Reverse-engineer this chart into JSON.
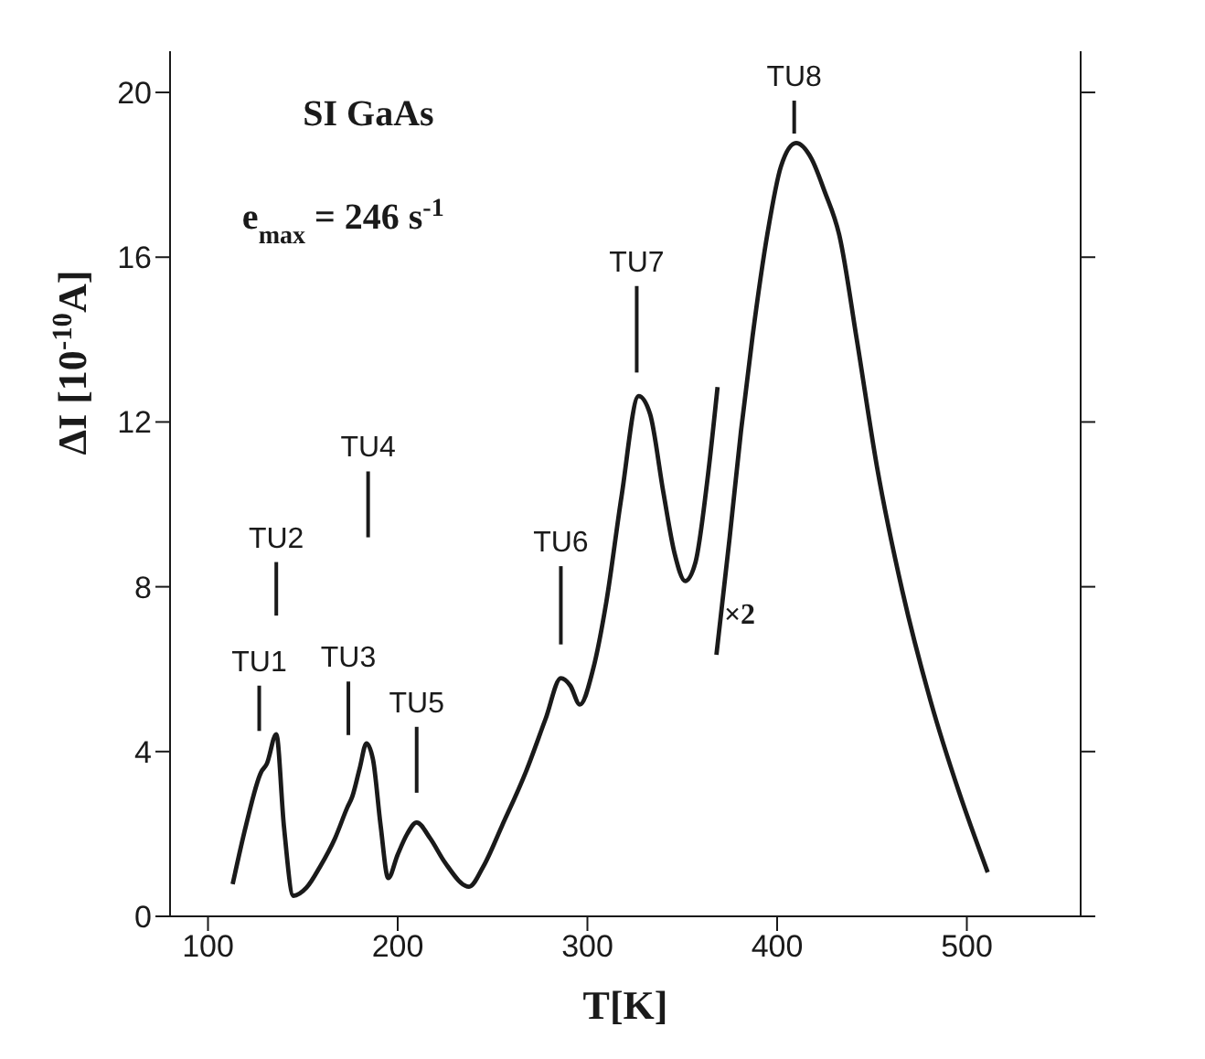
{
  "chart_data": {
    "type": "line",
    "xlabel": "T[K]",
    "ylabel": "ΔI  [10$^{-10}$A]",
    "xlim": [
      80,
      560
    ],
    "xticks": [
      100,
      200,
      300,
      400,
      500
    ],
    "ylim": [
      0,
      21
    ],
    "yticks": [
      0,
      4,
      8,
      12,
      16,
      20
    ],
    "grid": false,
    "marker": "none",
    "line_style": "solid",
    "series": [
      {
        "color": "#1a1a1a",
        "x": [
          113,
          120,
          128,
          131,
          136,
          140,
          145,
          152,
          159,
          167,
          173.5,
          176,
          180,
          183.5,
          187,
          191,
          195,
          200,
          205,
          210,
          217,
          225,
          237.6,
          245,
          255,
          267.5,
          278,
          286,
          291,
          296,
          303,
          310,
          318,
          327,
          333,
          340,
          346,
          351.5,
          357,
          363,
          368.6
        ],
        "values": [
          0.78,
          2.2,
          3.5,
          3.7,
          4.42,
          2.2,
          0.5,
          0.7,
          1.2,
          1.9,
          2.65,
          2.9,
          3.6,
          4.2,
          3.8,
          2.2,
          0.93,
          1.5,
          2.0,
          2.28,
          1.9,
          1.3,
          0.72,
          1.2,
          2.2,
          3.5,
          4.8,
          5.78,
          5.6,
          5.14,
          6.0,
          7.64,
          10.2,
          12.63,
          12.2,
          10.3,
          8.8,
          8.14,
          8.6,
          10.5,
          12.85
        ]
      },
      {
        "color": "#1a1a1a",
        "x": [
          368,
          375,
          381,
          387,
          395,
          402,
          410,
          418,
          425,
          433,
          442,
          452.6,
          466,
          481,
          496,
          511
        ],
        "values": [
          6.35,
          9.2,
          11.8,
          14.06,
          16.6,
          18.2,
          18.77,
          18.4,
          17.6,
          16.49,
          14.0,
          10.92,
          7.9,
          5.21,
          3.0,
          1.07
        ]
      }
    ],
    "annotations": [
      "SI GaAs",
      "e$_{max}$ = 246 s$^{-1}$",
      "×2",
      "TU1",
      "TU2",
      "TU3",
      "TU4",
      "TU5",
      "TU6",
      "TU7",
      "TU8"
    ]
  }
}
